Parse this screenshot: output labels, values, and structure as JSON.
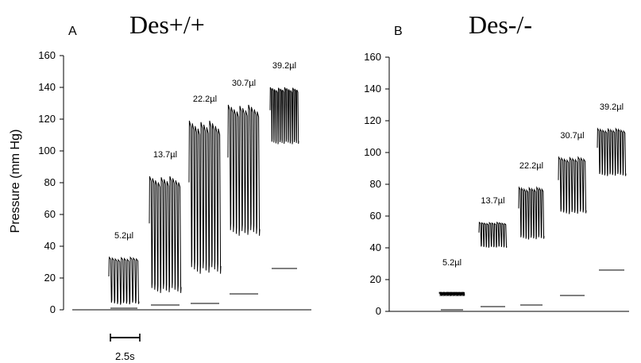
{
  "ylabel": "Pressure (mm Hg)",
  "scale_bar_label": "2.5s",
  "chart_data": [
    {
      "type": "line",
      "panel": "A",
      "title": "Des+/+",
      "ylabel": "Pressure (mm Hg)",
      "ylim": [
        0,
        160
      ],
      "yticks": [
        0,
        20,
        40,
        60,
        80,
        100,
        120,
        140,
        160
      ],
      "grid": false,
      "groups": [
        {
          "label": "5.2µl",
          "peak": 33,
          "trough": 3,
          "baseline": 1,
          "beats": 10
        },
        {
          "label": "13.7µl",
          "peak": 84,
          "trough": 10,
          "baseline": 3,
          "beats": 11
        },
        {
          "label": "22.2µl",
          "peak": 119,
          "trough": 22,
          "baseline": 4,
          "beats": 11
        },
        {
          "label": "30.7µl",
          "peak": 129,
          "trough": 46,
          "baseline": 10,
          "beats": 11
        },
        {
          "label": "39.2µl",
          "peak": 140,
          "trough": 104,
          "baseline": 26,
          "beats": 14
        }
      ]
    },
    {
      "type": "line",
      "panel": "B",
      "title": "Des-/-",
      "ylabel": "",
      "ylim": [
        0,
        160
      ],
      "yticks": [
        0,
        20,
        40,
        60,
        80,
        100,
        120,
        140,
        160
      ],
      "grid": false,
      "groups": [
        {
          "label": "5.2µl",
          "peak": 12,
          "trough": 10,
          "baseline": 1,
          "beats": 24
        },
        {
          "label": "13.7µl",
          "peak": 56,
          "trough": 40,
          "baseline": 3,
          "beats": 11
        },
        {
          "label": "22.2µl",
          "peak": 78,
          "trough": 45,
          "baseline": 4,
          "beats": 10
        },
        {
          "label": "30.7µl",
          "peak": 97,
          "trough": 61,
          "baseline": 10,
          "beats": 10
        },
        {
          "label": "39.2µl",
          "peak": 115,
          "trough": 85,
          "baseline": 26,
          "beats": 11
        }
      ]
    }
  ]
}
